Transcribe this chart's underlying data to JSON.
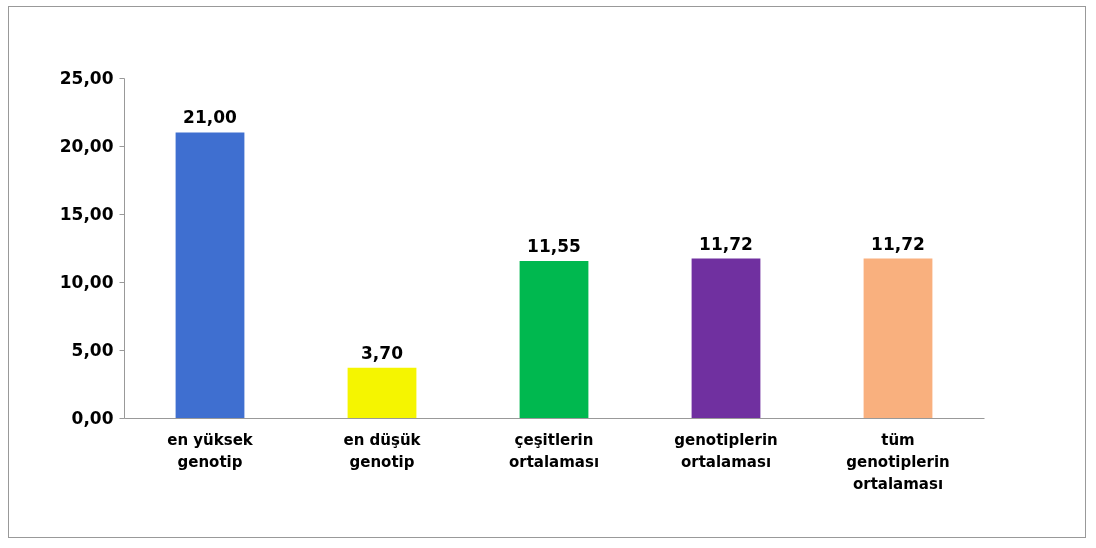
{
  "chart_data": {
    "type": "bar",
    "categories": [
      "en yüksek genotip",
      "en düşük genotip",
      "çeşitlerin ortalaması",
      "genotiplerin ortalaması",
      "tüm genotiplerin ortalaması"
    ],
    "values": [
      21.0,
      3.7,
      11.55,
      11.72,
      11.72
    ],
    "colors": [
      "#3f6fd0",
      "#f5f500",
      "#00b84f",
      "#7030a0",
      "#f9b07e"
    ],
    "value_labels": [
      "21,00",
      "3,70",
      "11,55",
      "11,72",
      "11,72"
    ],
    "ylim": [
      0,
      25
    ],
    "yticks": [
      {
        "value": 0,
        "label": "0,00"
      },
      {
        "value": 5,
        "label": "5,00"
      },
      {
        "value": 10,
        "label": "10,00"
      },
      {
        "value": 15,
        "label": "15,00"
      },
      {
        "value": 20,
        "label": "20,00"
      },
      {
        "value": 25,
        "label": "25,00"
      }
    ],
    "grid": false
  }
}
